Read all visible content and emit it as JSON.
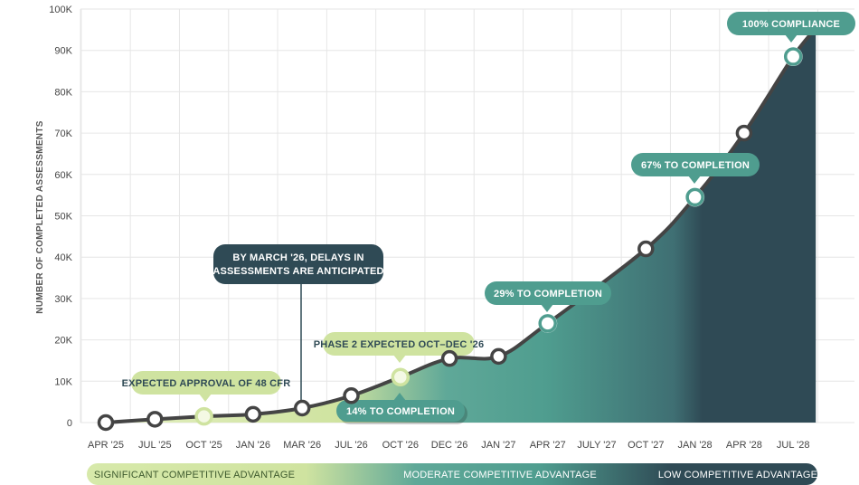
{
  "colors": {
    "light_green": "#cfe3a0",
    "teal": "#4f9d8f",
    "dark_teal": "#2f4a55",
    "line": "#444444",
    "grid": "#e6e6e6"
  },
  "chart_data": {
    "type": "area",
    "ylabel": "NUMBER OF COMPLETED ASSESSMENTS",
    "ylim": [
      0,
      100000
    ],
    "y_ticks": [
      {
        "value": 0,
        "label": "0"
      },
      {
        "value": 10000,
        "label": "10K"
      },
      {
        "value": 20000,
        "label": "20K"
      },
      {
        "value": 30000,
        "label": "30K"
      },
      {
        "value": 40000,
        "label": "40K"
      },
      {
        "value": 50000,
        "label": "50K"
      },
      {
        "value": 60000,
        "label": "60K"
      },
      {
        "value": 70000,
        "label": "70K"
      },
      {
        "value": 80000,
        "label": "80K"
      },
      {
        "value": 90000,
        "label": "90K"
      },
      {
        "value": 100000,
        "label": "100K"
      }
    ],
    "categories": [
      "APR '25",
      "JUL '25",
      "OCT '25",
      "JAN '26",
      "MAR '26",
      "JUL '26",
      "OCT '26",
      "DEC '26",
      "JAN '27",
      "APR '27",
      "JULY '27",
      "OCT '27",
      "JAN '28",
      "APR '28",
      "JUL '28"
    ],
    "points": [
      {
        "index": 0,
        "value": 0,
        "style": "dark"
      },
      {
        "index": 1,
        "value": 800,
        "style": "dark"
      },
      {
        "index": 2,
        "value": 1500,
        "style": "light"
      },
      {
        "index": 3,
        "value": 2000,
        "style": "dark"
      },
      {
        "index": 4,
        "value": 3500,
        "style": "dark"
      },
      {
        "index": 5,
        "value": 6500,
        "style": "dark"
      },
      {
        "index": 6,
        "value": 11000,
        "style": "light"
      },
      {
        "index": 7,
        "value": 15500,
        "style": "dark"
      },
      {
        "index": 8,
        "value": 16000,
        "style": "dark"
      },
      {
        "index": 9,
        "value": 24000,
        "style": "teal"
      },
      {
        "index": 11,
        "value": 42000,
        "style": "dark"
      },
      {
        "index": 12,
        "value": 54500,
        "style": "teal"
      },
      {
        "index": 13,
        "value": 70000,
        "style": "dark"
      },
      {
        "index": 14,
        "value": 88500,
        "style": "teal"
      }
    ],
    "annotations": [
      {
        "text": "EXPECTED APPROVAL OF 48 CFR",
        "style": "light"
      },
      {
        "text": "BY MARCH '26, DELAYS IN",
        "text2": "ASSESSMENTS ARE ANTICIPATED",
        "style": "dark"
      },
      {
        "text": "PHASE 2 EXPECTED OCT–DEC '26",
        "style": "light"
      },
      {
        "text": "14% TO COMPLETION",
        "style": "teal"
      },
      {
        "text": "29% TO COMPLETION",
        "style": "teal"
      },
      {
        "text": "67% TO COMPLETION",
        "style": "teal"
      },
      {
        "text": "100% COMPLIANCE",
        "style": "teal"
      }
    ],
    "bands": [
      {
        "text": "SIGNIFICANT COMPETITIVE ADVANTAGE"
      },
      {
        "text": "MODERATE COMPETITIVE ADVANTAGE"
      },
      {
        "text": "LOW COMPETITIVE ADVANTAGE"
      }
    ],
    "grid": true
  }
}
